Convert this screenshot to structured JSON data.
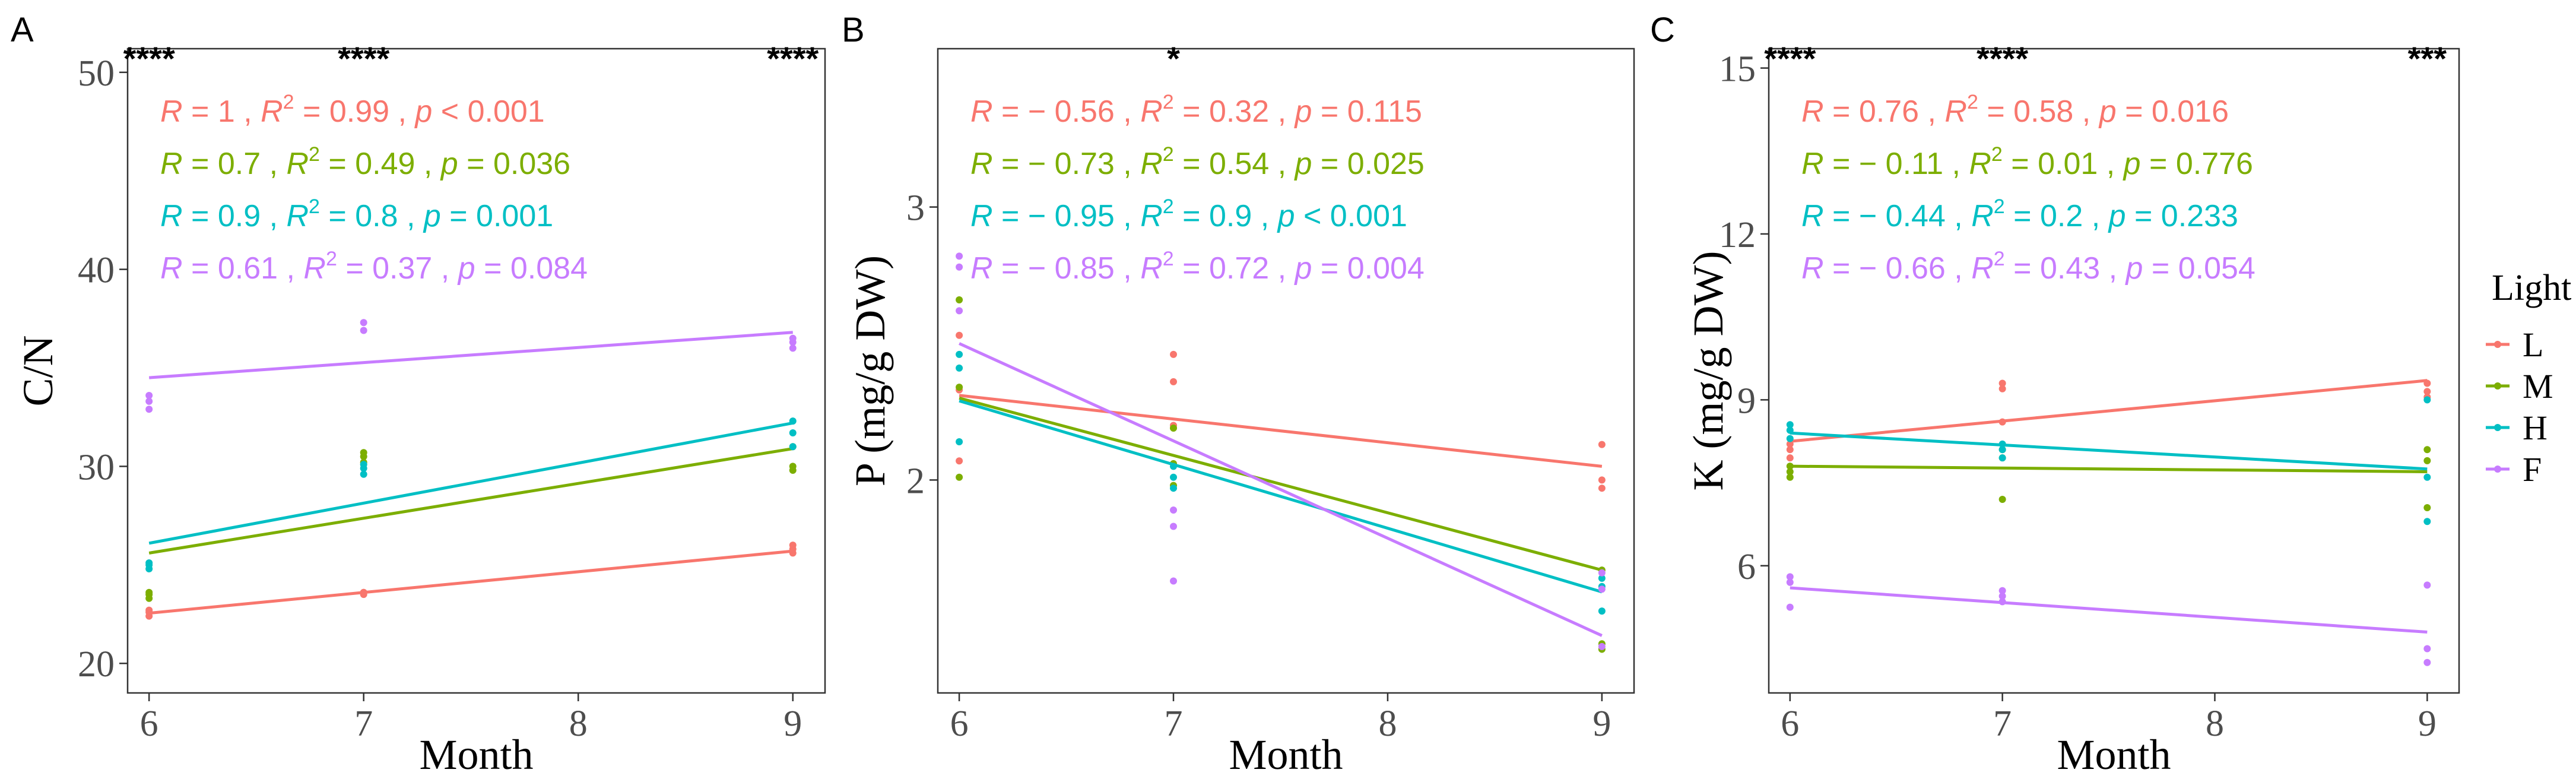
{
  "figure": {
    "legend": {
      "title": "Light",
      "entries": [
        {
          "key": "L",
          "label": "L",
          "color": "#F8766D"
        },
        {
          "key": "M",
          "label": "M",
          "color": "#7CAE00"
        },
        {
          "key": "H",
          "label": "H",
          "color": "#00BFC4"
        },
        {
          "key": "F",
          "label": "F",
          "color": "#C77CFF"
        }
      ],
      "placement": "right"
    }
  },
  "chart_data": [
    {
      "type": "scatter",
      "panel_label": "A",
      "xlabel": "Month",
      "ylabel": "C/N",
      "xlim": [
        5.9,
        9.15
      ],
      "ylim": [
        18.5,
        51.2
      ],
      "xticks": [
        6,
        7,
        8,
        9
      ],
      "yticks": [
        20,
        30,
        40,
        50
      ],
      "grid": false,
      "significance": [
        {
          "x": 6,
          "label": "****"
        },
        {
          "x": 7,
          "label": "****"
        },
        {
          "x": 9,
          "label": "****"
        }
      ],
      "series": [
        {
          "name": "L",
          "color": "#F8766D",
          "points": [
            [
              6,
              22.4
            ],
            [
              6,
              22.6
            ],
            [
              6,
              22.7
            ],
            [
              7,
              23.5
            ],
            [
              7,
              23.6
            ],
            [
              7,
              23.6
            ],
            [
              9,
              25.6
            ],
            [
              9,
              25.8
            ],
            [
              9,
              26.0
            ]
          ],
          "fit": [
            [
              6,
              22.55
            ],
            [
              9,
              25.7
            ]
          ],
          "stats": {
            "R": "1",
            "R2": "0.99",
            "p_op": "<",
            "p": "0.001"
          }
        },
        {
          "name": "M",
          "color": "#7CAE00",
          "points": [
            [
              6,
              23.3
            ],
            [
              6,
              23.5
            ],
            [
              6,
              23.6
            ],
            [
              7,
              30.2
            ],
            [
              7,
              30.5
            ],
            [
              7,
              30.7
            ],
            [
              9,
              29.8
            ],
            [
              9,
              30.0
            ],
            [
              9,
              31.0
            ]
          ],
          "fit": [
            [
              6,
              25.6
            ],
            [
              9,
              30.9
            ]
          ],
          "stats": {
            "R": "0.7",
            "R2": "0.49",
            "p_op": "=",
            "p": "0.036"
          }
        },
        {
          "name": "H",
          "color": "#00BFC4",
          "points": [
            [
              6,
              24.8
            ],
            [
              6,
              25.0
            ],
            [
              6,
              25.1
            ],
            [
              7,
              29.6
            ],
            [
              7,
              29.9
            ],
            [
              7,
              30.1
            ],
            [
              9,
              31.0
            ],
            [
              9,
              31.7
            ],
            [
              9,
              32.3
            ]
          ],
          "fit": [
            [
              6,
              26.1
            ],
            [
              9,
              32.2
            ]
          ],
          "stats": {
            "R": "0.9",
            "R2": "0.8",
            "p_op": "=",
            "p": "0.001"
          }
        },
        {
          "name": "F",
          "color": "#C77CFF",
          "points": [
            [
              6,
              32.9
            ],
            [
              6,
              33.3
            ],
            [
              6,
              33.6
            ],
            [
              7,
              36.9
            ],
            [
              7,
              37.3
            ],
            [
              9,
              36.0
            ],
            [
              9,
              36.3
            ],
            [
              9,
              36.5
            ]
          ],
          "fit": [
            [
              6,
              34.5
            ],
            [
              9,
              36.8
            ]
          ],
          "stats": {
            "R": "0.61",
            "R2": "0.37",
            "p_op": "=",
            "p": "0.084"
          }
        }
      ]
    },
    {
      "type": "scatter",
      "panel_label": "B",
      "xlabel": "Month",
      "ylabel": "P (mg/g DW)",
      "xlim": [
        5.9,
        9.15
      ],
      "ylim": [
        1.22,
        3.58
      ],
      "xticks": [
        6,
        7,
        8,
        9
      ],
      "yticks": [
        2,
        3
      ],
      "grid": false,
      "significance": [
        {
          "x": 7,
          "label": "*"
        }
      ],
      "series": [
        {
          "name": "L",
          "color": "#F8766D",
          "points": [
            [
              6,
              2.07
            ],
            [
              6,
              2.33
            ],
            [
              6,
              2.53
            ],
            [
              7,
              2.36
            ],
            [
              7,
              2.46
            ],
            [
              7,
              2.2
            ],
            [
              9,
              1.97
            ],
            [
              9,
              2.0
            ],
            [
              9,
              2.13
            ]
          ],
          "fit": [
            [
              6,
              2.31
            ],
            [
              9,
              2.05
            ]
          ],
          "stats": {
            "R": "− 0.56",
            "R2": "0.32",
            "p_op": "=",
            "p": "0.115"
          }
        },
        {
          "name": "M",
          "color": "#7CAE00",
          "points": [
            [
              6,
              2.01
            ],
            [
              6,
              2.34
            ],
            [
              6,
              2.66
            ],
            [
              7,
              2.19
            ],
            [
              7,
              2.06
            ],
            [
              7,
              1.98
            ],
            [
              9,
              1.38
            ],
            [
              9,
              1.4
            ],
            [
              9,
              1.67
            ]
          ],
          "fit": [
            [
              6,
              2.3
            ],
            [
              9,
              1.67
            ]
          ],
          "stats": {
            "R": "− 0.73",
            "R2": "0.54",
            "p_op": "=",
            "p": "0.025"
          }
        },
        {
          "name": "H",
          "color": "#00BFC4",
          "points": [
            [
              6,
              2.14
            ],
            [
              6,
              2.41
            ],
            [
              6,
              2.46
            ],
            [
              7,
              2.05
            ],
            [
              7,
              2.01
            ],
            [
              7,
              1.97
            ],
            [
              9,
              1.52
            ],
            [
              9,
              1.61
            ],
            [
              9,
              1.64
            ]
          ],
          "fit": [
            [
              6,
              2.29
            ],
            [
              9,
              1.59
            ]
          ],
          "stats": {
            "R": "− 0.95",
            "R2": "0.9",
            "p_op": "<",
            "p": "0.001"
          }
        },
        {
          "name": "F",
          "color": "#C77CFF",
          "points": [
            [
              6,
              2.62
            ],
            [
              6,
              2.78
            ],
            [
              6,
              2.82
            ],
            [
              7,
              1.83
            ],
            [
              7,
              1.63
            ],
            [
              7,
              1.89
            ],
            [
              9,
              1.6
            ],
            [
              9,
              1.66
            ],
            [
              9,
              1.39
            ]
          ],
          "fit": [
            [
              6,
              2.5
            ],
            [
              9,
              1.43
            ]
          ],
          "stats": {
            "R": "− 0.85",
            "R2": "0.72",
            "p_op": "=",
            "p": "0.004"
          }
        }
      ]
    },
    {
      "type": "scatter",
      "panel_label": "C",
      "xlabel": "Month",
      "ylabel": "K (mg/g DW)",
      "xlim": [
        5.9,
        9.15
      ],
      "ylim": [
        3.7,
        15.35
      ],
      "xticks": [
        6,
        7,
        8,
        9
      ],
      "yticks": [
        6,
        9,
        12,
        15
      ],
      "grid": false,
      "significance": [
        {
          "x": 6,
          "label": "****"
        },
        {
          "x": 7,
          "label": "****"
        },
        {
          "x": 9,
          "label": "***"
        }
      ],
      "series": [
        {
          "name": "L",
          "color": "#F8766D",
          "points": [
            [
              6,
              7.95
            ],
            [
              6,
              8.1
            ],
            [
              6,
              8.2
            ],
            [
              7,
              9.2
            ],
            [
              7,
              9.3
            ],
            [
              7,
              8.6
            ],
            [
              9,
              9.05
            ],
            [
              9,
              9.15
            ],
            [
              9,
              9.3
            ]
          ],
          "fit": [
            [
              6,
              8.25
            ],
            [
              9,
              9.35
            ]
          ],
          "stats": {
            "R": "0.76",
            "R2": "0.58",
            "p_op": "=",
            "p": "0.016"
          }
        },
        {
          "name": "M",
          "color": "#7CAE00",
          "points": [
            [
              6,
              7.6
            ],
            [
              6,
              7.7
            ],
            [
              6,
              7.8
            ],
            [
              7,
              7.2
            ],
            [
              7,
              7.95
            ],
            [
              7,
              8.1
            ],
            [
              9,
              7.05
            ],
            [
              9,
              7.9
            ],
            [
              9,
              8.1
            ]
          ],
          "fit": [
            [
              6,
              7.8
            ],
            [
              9,
              7.7
            ]
          ],
          "stats": {
            "R": "− 0.11",
            "R2": "0.01",
            "p_op": "=",
            "p": "0.776"
          }
        },
        {
          "name": "H",
          "color": "#00BFC4",
          "points": [
            [
              6,
              8.3
            ],
            [
              6,
              8.45
            ],
            [
              6,
              8.55
            ],
            [
              7,
              7.95
            ],
            [
              7,
              8.1
            ],
            [
              7,
              8.2
            ],
            [
              9,
              6.8
            ],
            [
              9,
              7.6
            ],
            [
              9,
              9.0
            ]
          ],
          "fit": [
            [
              6,
              8.4
            ],
            [
              9,
              7.75
            ]
          ],
          "stats": {
            "R": "− 0.44",
            "R2": "0.2",
            "p_op": "=",
            "p": "0.233"
          }
        },
        {
          "name": "F",
          "color": "#C77CFF",
          "points": [
            [
              6,
              5.25
            ],
            [
              6,
              5.7
            ],
            [
              6,
              5.8
            ],
            [
              7,
              5.35
            ],
            [
              7,
              5.45
            ],
            [
              7,
              5.55
            ],
            [
              9,
              4.25
            ],
            [
              9,
              4.5
            ],
            [
              9,
              5.65
            ]
          ],
          "fit": [
            [
              6,
              5.6
            ],
            [
              9,
              4.8
            ]
          ],
          "stats": {
            "R": "− 0.66",
            "R2": "0.43",
            "p_op": "=",
            "p": "0.054"
          }
        }
      ]
    }
  ]
}
